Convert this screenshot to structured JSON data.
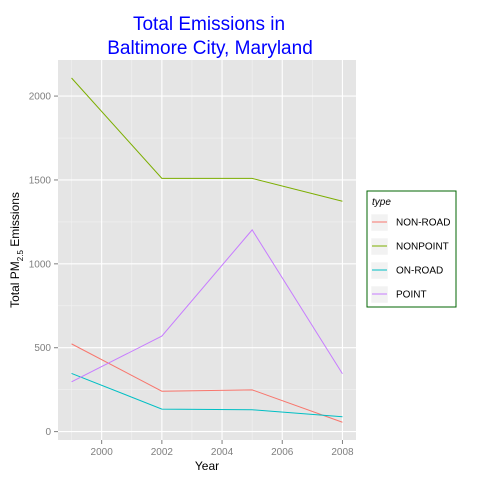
{
  "chart_data": {
    "type": "line",
    "title_lines": [
      "Total Emissions in",
      "Baltimore City, Maryland"
    ],
    "xlabel": "Year",
    "ylabel": {
      "prefix": "Total PM",
      "sub": "2.5",
      "suffix": " Emissions"
    },
    "x": [
      1999,
      2002,
      2005,
      2008
    ],
    "xlim": [
      1998.55,
      2008.45
    ],
    "ylim": [
      -50,
      2215
    ],
    "xticks": [
      2000,
      2002,
      2004,
      2006,
      2008
    ],
    "yticks": [
      0,
      500,
      1000,
      1500,
      2000
    ],
    "xtick_labels": [
      "2000",
      "2002",
      "2004",
      "2006",
      "2008"
    ],
    "ytick_labels": [
      "0",
      "500",
      "1000",
      "1500",
      "2000"
    ],
    "legend": {
      "title": "type",
      "position": "right"
    },
    "grid": true,
    "series": [
      {
        "name": "NON-ROAD",
        "color": "#F8766D",
        "values": [
          522.94,
          240.85,
          248.93,
          55.82
        ]
      },
      {
        "name": "NONPOINT",
        "color": "#7CAE00",
        "values": [
          2107.63,
          1509.5,
          1509.5,
          1373.21
        ]
      },
      {
        "name": "ON-ROAD",
        "color": "#00BFC4",
        "values": [
          346.82,
          134.31,
          130.43,
          88.28
        ]
      },
      {
        "name": "POINT",
        "color": "#C77CFF",
        "values": [
          296.8,
          569.26,
          1202.49,
          344.98
        ]
      }
    ]
  }
}
